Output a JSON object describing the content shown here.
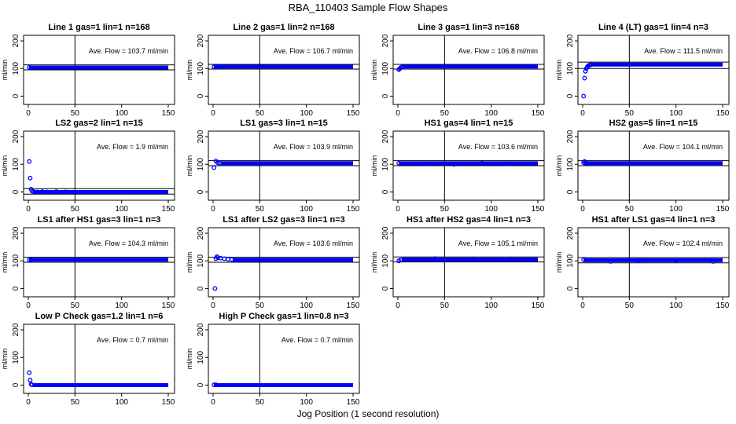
{
  "figure": {
    "title": "RBA_110403  Sample Flow Shapes",
    "xlabel": "Jog Position (1 second resolution)"
  },
  "colors": {
    "points": "#0000ff",
    "lines": "#000000",
    "background": "#ffffff"
  },
  "chart_data": [
    {
      "type": "scatter",
      "title": "Line 1 gas=1 lin=1 n=168",
      "ylabel": "ml/min",
      "avg_label": "Ave. Flow = 103.7 ml/min",
      "mean": 103.7,
      "band": [
        95,
        113
      ],
      "vline_x": 50,
      "xlim": [
        0,
        150
      ],
      "ylim": [
        -30,
        220
      ],
      "xticks": [
        0,
        50,
        100,
        150
      ],
      "yticks": [
        0,
        100,
        200
      ],
      "points": [
        [
          1,
          104
        ],
        [
          3,
          103
        ]
      ],
      "level": 103.7,
      "level_from": 1,
      "level_to": 150
    },
    {
      "type": "scatter",
      "title": "Line 2 gas=1 lin=2 n=168",
      "ylabel": "ml/min",
      "avg_label": "Ave. Flow = 106.7 ml/min",
      "mean": 106.7,
      "band": [
        98,
        115
      ],
      "vline_x": 50,
      "xlim": [
        0,
        150
      ],
      "ylim": [
        -30,
        220
      ],
      "xticks": [
        0,
        50,
        100,
        150
      ],
      "yticks": [
        0,
        100,
        200
      ],
      "points": [
        [
          1,
          106
        ],
        [
          3,
          106
        ]
      ],
      "level": 106.7,
      "level_from": 1,
      "level_to": 150
    },
    {
      "type": "scatter",
      "title": "Line 3 gas=1 lin=3 n=168",
      "ylabel": "ml/min",
      "avg_label": "Ave. Flow = 106.8 ml/min",
      "mean": 106.8,
      "band": [
        98,
        115
      ],
      "vline_x": 50,
      "xlim": [
        0,
        150
      ],
      "ylim": [
        -30,
        220
      ],
      "xticks": [
        0,
        50,
        100,
        150
      ],
      "yticks": [
        0,
        100,
        200
      ],
      "points": [
        [
          1,
          96
        ],
        [
          2,
          100
        ],
        [
          3,
          103
        ],
        [
          4,
          105
        ],
        [
          5,
          106
        ]
      ],
      "level": 107,
      "level_from": 6,
      "level_to": 150
    },
    {
      "type": "scatter",
      "title": "Line 4 (LT) gas=1 lin=4 n=3",
      "ylabel": "ml/min",
      "avg_label": "Ave. Flow = 111.5 ml/min",
      "mean": 111.5,
      "band": [
        100,
        123
      ],
      "vline_x": 50,
      "xlim": [
        0,
        150
      ],
      "ylim": [
        -30,
        220
      ],
      "xticks": [
        0,
        50,
        100,
        150
      ],
      "yticks": [
        0,
        100,
        200
      ],
      "points": [
        [
          1,
          0
        ],
        [
          2,
          65
        ],
        [
          3,
          90
        ],
        [
          4,
          100
        ],
        [
          5,
          106
        ],
        [
          6,
          110
        ],
        [
          7,
          112
        ],
        [
          8,
          113
        ],
        [
          9,
          114
        ]
      ],
      "level": 114,
      "level_from": 10,
      "level_to": 150
    },
    {
      "type": "scatter",
      "title": "LS2 gas=2 lin=1 n=15",
      "ylabel": "ml/min",
      "avg_label": "Ave. Flow = 1.9 ml/min",
      "mean": 1.9,
      "band": [
        -8,
        12
      ],
      "vline_x": 50,
      "xlim": [
        0,
        150
      ],
      "ylim": [
        -30,
        220
      ],
      "xticks": [
        0,
        50,
        100,
        150
      ],
      "yticks": [
        0,
        100,
        200
      ],
      "points": [
        [
          1,
          110
        ],
        [
          2,
          50
        ],
        [
          3,
          10
        ],
        [
          4,
          3
        ],
        [
          6,
          1
        ],
        [
          10,
          0
        ],
        [
          15,
          1
        ],
        [
          20,
          0
        ],
        [
          30,
          1
        ],
        [
          40,
          0
        ]
      ],
      "level": 0,
      "level_from": 5,
      "level_to": 150
    },
    {
      "type": "scatter",
      "title": "LS1 gas=3 lin=1 n=15",
      "ylabel": "ml/min",
      "avg_label": "Ave. Flow = 103.9 ml/min",
      "mean": 103.9,
      "band": [
        95,
        113
      ],
      "vline_x": 50,
      "xlim": [
        0,
        150
      ],
      "ylim": [
        -30,
        220
      ],
      "xticks": [
        0,
        50,
        100,
        150
      ],
      "yticks": [
        0,
        100,
        200
      ],
      "points": [
        [
          1,
          88
        ],
        [
          3,
          112
        ],
        [
          5,
          106
        ],
        [
          7,
          104
        ]
      ],
      "level": 104,
      "level_from": 8,
      "level_to": 150
    },
    {
      "type": "scatter",
      "title": "HS1 gas=4 lin=1 n=15",
      "ylabel": "ml/min",
      "avg_label": "Ave. Flow = 103.6 ml/min",
      "mean": 103.6,
      "band": [
        95,
        113
      ],
      "vline_x": 50,
      "xlim": [
        0,
        150
      ],
      "ylim": [
        -30,
        220
      ],
      "xticks": [
        0,
        50,
        100,
        150
      ],
      "yticks": [
        0,
        100,
        200
      ],
      "points": [
        [
          1,
          104
        ],
        [
          30,
          101
        ],
        [
          60,
          100
        ],
        [
          90,
          104
        ],
        [
          120,
          103
        ]
      ],
      "level": 103.6,
      "level_from": 1,
      "level_to": 150
    },
    {
      "type": "scatter",
      "title": "HS2 gas=5 lin=1 n=15",
      "ylabel": "ml/min",
      "avg_label": "Ave. Flow = 104.1 ml/min",
      "mean": 104.1,
      "band": [
        95,
        113
      ],
      "vline_x": 50,
      "xlim": [
        0,
        150
      ],
      "ylim": [
        -30,
        220
      ],
      "xticks": [
        0,
        50,
        100,
        150
      ],
      "yticks": [
        0,
        100,
        200
      ],
      "points": [
        [
          1,
          106
        ],
        [
          2,
          110
        ],
        [
          4,
          104
        ]
      ],
      "level": 104,
      "level_from": 1,
      "level_to": 150
    },
    {
      "type": "scatter",
      "title": "LS1 after HS1 gas=3 lin=1 n=3",
      "ylabel": "ml/min",
      "avg_label": "Ave. Flow = 104.3 ml/min",
      "mean": 104.3,
      "band": [
        95,
        113
      ],
      "vline_x": 50,
      "xlim": [
        0,
        150
      ],
      "ylim": [
        -30,
        220
      ],
      "xticks": [
        0,
        50,
        100,
        150
      ],
      "yticks": [
        0,
        100,
        200
      ],
      "points": [
        [
          1,
          104
        ],
        [
          3,
          104
        ]
      ],
      "level": 104.3,
      "level_from": 1,
      "level_to": 150
    },
    {
      "type": "scatter",
      "title": "LS1 after LS2 gas=3 lin=1 n=3",
      "ylabel": "ml/min",
      "avg_label": "Ave. Flow = 103.6 ml/min",
      "mean": 103.6,
      "band": [
        95,
        113
      ],
      "vline_x": 50,
      "xlim": [
        0,
        150
      ],
      "ylim": [
        -30,
        220
      ],
      "xticks": [
        0,
        50,
        100,
        150
      ],
      "yticks": [
        0,
        100,
        200
      ],
      "points": [
        [
          2,
          0
        ],
        [
          3,
          108
        ],
        [
          4,
          115
        ],
        [
          5,
          112
        ],
        [
          8,
          110
        ],
        [
          12,
          108
        ],
        [
          16,
          106
        ],
        [
          20,
          105
        ]
      ],
      "level": 104,
      "level_from": 21,
      "level_to": 150
    },
    {
      "type": "scatter",
      "title": "HS1 after HS2 gas=4 lin=1 n=3",
      "ylabel": "ml/min",
      "avg_label": "Ave. Flow = 105.1 ml/min",
      "mean": 105.1,
      "band": [
        96,
        114
      ],
      "vline_x": 50,
      "xlim": [
        0,
        150
      ],
      "ylim": [
        -30,
        220
      ],
      "xticks": [
        0,
        50,
        100,
        150
      ],
      "yticks": [
        0,
        100,
        200
      ],
      "points": [
        [
          1,
          100
        ],
        [
          3,
          103
        ],
        [
          40,
          108
        ],
        [
          80,
          106
        ],
        [
          120,
          106
        ]
      ],
      "level": 105,
      "level_from": 4,
      "level_to": 150
    },
    {
      "type": "scatter",
      "title": "HS1 after LS1 gas=4 lin=1 n=3",
      "ylabel": "ml/min",
      "avg_label": "Ave. Flow = 102.4 ml/min",
      "mean": 102.4,
      "band": [
        93,
        112
      ],
      "vline_x": 50,
      "xlim": [
        0,
        150
      ],
      "ylim": [
        -30,
        220
      ],
      "xticks": [
        0,
        50,
        100,
        150
      ],
      "yticks": [
        0,
        100,
        200
      ],
      "points": [
        [
          1,
          104
        ],
        [
          30,
          98
        ],
        [
          60,
          100
        ],
        [
          100,
          101
        ],
        [
          140,
          98
        ]
      ],
      "level": 102.4,
      "level_from": 1,
      "level_to": 150
    },
    {
      "type": "scatter",
      "title": "Low P Check gas=1.2 lin=1 n=6",
      "ylabel": "ml/min",
      "avg_label": "Ave. Flow = 0.7 ml/min",
      "mean": 0.7,
      "band": null,
      "vline_x": 50,
      "xlim": [
        0,
        150
      ],
      "ylim": [
        -30,
        220
      ],
      "xticks": [
        0,
        50,
        100,
        150
      ],
      "yticks": [
        0,
        100,
        200
      ],
      "points": [
        [
          1,
          45
        ],
        [
          2,
          18
        ],
        [
          3,
          3
        ],
        [
          4,
          1
        ]
      ],
      "level": 0,
      "level_from": 5,
      "level_to": 150
    },
    {
      "type": "scatter",
      "title": "High P Check gas=1 lin=0.8 n=3",
      "ylabel": "ml/min",
      "avg_label": "Ave. Flow = 0.7 ml/min",
      "mean": 0.7,
      "band": null,
      "vline_x": 50,
      "xlim": [
        0,
        150
      ],
      "ylim": [
        -30,
        220
      ],
      "xticks": [
        0,
        50,
        100,
        150
      ],
      "yticks": [
        0,
        100,
        200
      ],
      "points": [
        [
          1,
          1
        ],
        [
          3,
          1
        ]
      ],
      "level": 0,
      "level_from": 1,
      "level_to": 150
    }
  ]
}
